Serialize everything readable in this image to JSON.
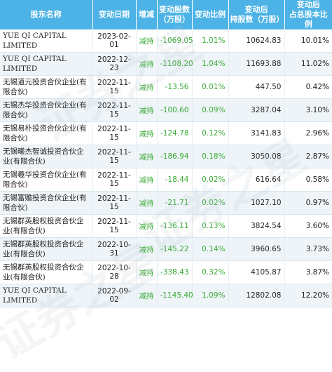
{
  "headers": [
    "股东名称",
    "变动日期",
    "增减",
    "变动股数\n（万股）",
    "变动比例",
    "变动后\n持股数（万股）",
    "变动后\n占总股本比例"
  ],
  "rows": [
    {
      "name": "YUE QI CAPITAL LIMITED",
      "date": "2023-02-01",
      "dir": "减持",
      "change": "-1069.05",
      "ratio": "1.01%",
      "after": "10624.83",
      "pct": "10.01%"
    },
    {
      "name": "YUE QI CAPITAL LIMITED",
      "date": "2022-12-23",
      "dir": "减持",
      "change": "-1108.20",
      "ratio": "1.04%",
      "after": "11693.88",
      "pct": "11.02%"
    },
    {
      "name": "无锡道元投资合伙企业(有限合伙)",
      "date": "2022-11-15",
      "dir": "减持",
      "change": "-13.56",
      "ratio": "0.01%",
      "after": "447.50",
      "pct": "0.42%"
    },
    {
      "name": "无锡杰华投资合伙企业(有限合伙)",
      "date": "2022-11-15",
      "dir": "减持",
      "change": "-100.60",
      "ratio": "0.09%",
      "after": "3287.04",
      "pct": "3.10%"
    },
    {
      "name": "无锡易朴投资合伙企业(有限合伙)",
      "date": "2022-11-15",
      "dir": "减持",
      "change": "-124.78",
      "ratio": "0.12%",
      "after": "3141.83",
      "pct": "2.96%"
    },
    {
      "name": "无锡曦杰智诚投资合伙企业(有限合伙)",
      "date": "2022-11-15",
      "dir": "减持",
      "change": "-186.94",
      "ratio": "0.18%",
      "after": "3050.08",
      "pct": "2.87%"
    },
    {
      "name": "无锡羲华投资合伙企业(有限合伙)",
      "date": "2022-11-15",
      "dir": "减持",
      "change": "-18.44",
      "ratio": "0.02%",
      "after": "616.64",
      "pct": "0.58%"
    },
    {
      "name": "无锡富赡投资合伙企业(有限合伙)",
      "date": "2022-11-15",
      "dir": "减持",
      "change": "-21.71",
      "ratio": "0.02%",
      "after": "1027.10",
      "pct": "0.97%"
    },
    {
      "name": "无锡群英股权投资合伙企业(有限合伙)",
      "date": "2022-11-15",
      "dir": "减持",
      "change": "-136.11",
      "ratio": "0.13%",
      "after": "3824.54",
      "pct": "3.60%"
    },
    {
      "name": "无锡群英股权投资合伙企业(有限合伙)",
      "date": "2022-10-31",
      "dir": "减持",
      "change": "-145.22",
      "ratio": "0.14%",
      "after": "3960.65",
      "pct": "3.73%"
    },
    {
      "name": "无锡群英股权投资合伙企业(有限合伙)",
      "date": "2022-10-28",
      "dir": "减持",
      "change": "-338.43",
      "ratio": "0.32%",
      "after": "4105.87",
      "pct": "3.87%"
    },
    {
      "name": "YUE QI CAPITAL LIMITED",
      "date": "2022-09-02",
      "dir": "减持",
      "change": "-1145.40",
      "ratio": "1.09%",
      "after": "12802.08",
      "pct": "12.20%"
    }
  ],
  "watermark": "证券之星"
}
